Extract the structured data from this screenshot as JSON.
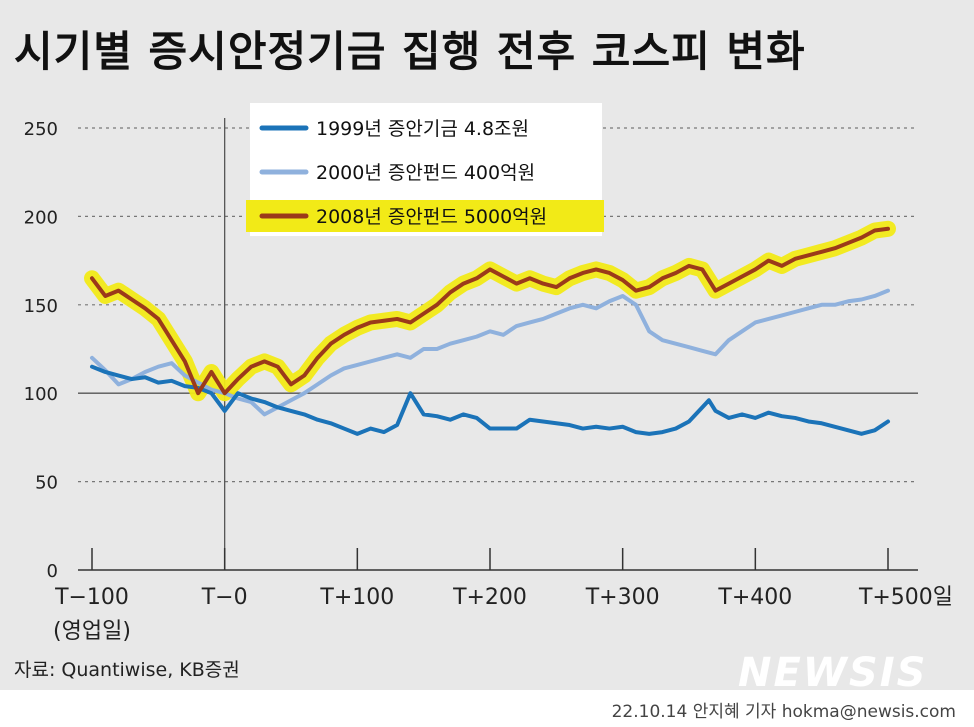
{
  "title": "시기별 증시안정기금 집행 전후 코스피 변화",
  "source": "자료: Quantiwise, KB증권",
  "credit": "22.10.14 안지혜 기자 hokma@newsis.com",
  "logo": "NEWSIS",
  "colors": {
    "background": "#e8e8e8",
    "series_1999": "#1b73b8",
    "series_2000": "#8fb1dd",
    "series_2008": "#9b3a1a",
    "highlight": "#f2ea17"
  },
  "chart_data": {
    "type": "line",
    "title": "",
    "xlabel": "(영업일)",
    "ylabel": "",
    "ylim": [
      0,
      250
    ],
    "xlim": [
      -100,
      500
    ],
    "y_ticks": [
      0,
      50,
      100,
      150,
      200,
      250
    ],
    "x_ticks": [
      {
        "value": -100,
        "label": "T−100"
      },
      {
        "value": 0,
        "label": "T−0"
      },
      {
        "value": 100,
        "label": "T+100"
      },
      {
        "value": 200,
        "label": "T+200"
      },
      {
        "value": 300,
        "label": "T+300"
      },
      {
        "value": 400,
        "label": "T+400"
      },
      {
        "value": 500,
        "label": "T+500일"
      }
    ],
    "x_axis_note": "(영업일)",
    "grid": "horizontal dashed",
    "legend_position": "top-center",
    "reference_line": 100,
    "series": [
      {
        "name": "1999년 증안기금 4.8조원",
        "color": "#1b73b8",
        "highlight": false,
        "x": [
          -100,
          -90,
          -80,
          -70,
          -60,
          -50,
          -40,
          -30,
          -20,
          -10,
          0,
          10,
          20,
          30,
          40,
          50,
          60,
          70,
          80,
          90,
          100,
          110,
          120,
          130,
          140,
          150,
          160,
          170,
          180,
          190,
          200,
          210,
          220,
          230,
          240,
          250,
          260,
          270,
          280,
          290,
          300,
          310,
          320,
          330,
          340,
          350,
          360,
          365,
          370,
          380,
          390,
          400,
          410,
          420,
          430,
          440,
          450,
          460,
          470,
          480,
          490,
          500
        ],
        "y": [
          115,
          112,
          110,
          108,
          109,
          106,
          107,
          104,
          103,
          100,
          90,
          100,
          97,
          95,
          92,
          90,
          88,
          85,
          83,
          80,
          77,
          80,
          78,
          82,
          100,
          88,
          87,
          85,
          88,
          86,
          80,
          80,
          80,
          85,
          84,
          83,
          82,
          80,
          81,
          80,
          81,
          78,
          77,
          78,
          80,
          84,
          92,
          96,
          90,
          86,
          88,
          86,
          89,
          87,
          86,
          84,
          83,
          81,
          79,
          77,
          79,
          84
        ]
      },
      {
        "name": "2000년 증안펀드 400억원",
        "color": "#8fb1dd",
        "highlight": false,
        "x": [
          -100,
          -90,
          -80,
          -70,
          -60,
          -50,
          -40,
          -30,
          -20,
          -10,
          0,
          10,
          20,
          30,
          40,
          50,
          60,
          70,
          80,
          90,
          100,
          110,
          120,
          130,
          140,
          150,
          160,
          170,
          180,
          190,
          200,
          210,
          220,
          230,
          240,
          250,
          260,
          270,
          280,
          290,
          300,
          310,
          320,
          330,
          340,
          350,
          360,
          370,
          380,
          390,
          400,
          410,
          420,
          430,
          440,
          450,
          460,
          470,
          480,
          490,
          500
        ],
        "y": [
          120,
          113,
          105,
          108,
          112,
          115,
          117,
          110,
          106,
          102,
          100,
          97,
          95,
          88,
          92,
          96,
          100,
          105,
          110,
          114,
          116,
          118,
          120,
          122,
          120,
          125,
          125,
          128,
          130,
          132,
          135,
          133,
          138,
          140,
          142,
          145,
          148,
          150,
          148,
          152,
          155,
          150,
          135,
          130,
          128,
          126,
          124,
          122,
          130,
          135,
          140,
          142,
          144,
          146,
          148,
          150,
          150,
          152,
          153,
          155,
          158
        ]
      },
      {
        "name": "2008년 증안펀드 5000억원",
        "color": "#9b3a1a",
        "highlight": true,
        "x": [
          -100,
          -90,
          -80,
          -70,
          -60,
          -50,
          -40,
          -30,
          -20,
          -10,
          0,
          10,
          20,
          30,
          40,
          50,
          60,
          70,
          80,
          90,
          100,
          110,
          120,
          130,
          140,
          150,
          160,
          170,
          180,
          190,
          200,
          210,
          220,
          230,
          240,
          250,
          260,
          270,
          280,
          290,
          300,
          310,
          320,
          330,
          340,
          350,
          360,
          370,
          380,
          390,
          400,
          410,
          420,
          430,
          440,
          450,
          460,
          470,
          480,
          490,
          500
        ],
        "y": [
          165,
          155,
          158,
          153,
          148,
          142,
          130,
          118,
          100,
          112,
          100,
          108,
          115,
          118,
          115,
          105,
          110,
          120,
          128,
          133,
          137,
          140,
          141,
          142,
          140,
          145,
          150,
          157,
          162,
          165,
          170,
          166,
          162,
          165,
          162,
          160,
          165,
          168,
          170,
          168,
          164,
          158,
          160,
          165,
          168,
          172,
          170,
          158,
          162,
          166,
          170,
          175,
          172,
          176,
          178,
          180,
          182,
          185,
          188,
          192,
          193
        ]
      }
    ]
  }
}
